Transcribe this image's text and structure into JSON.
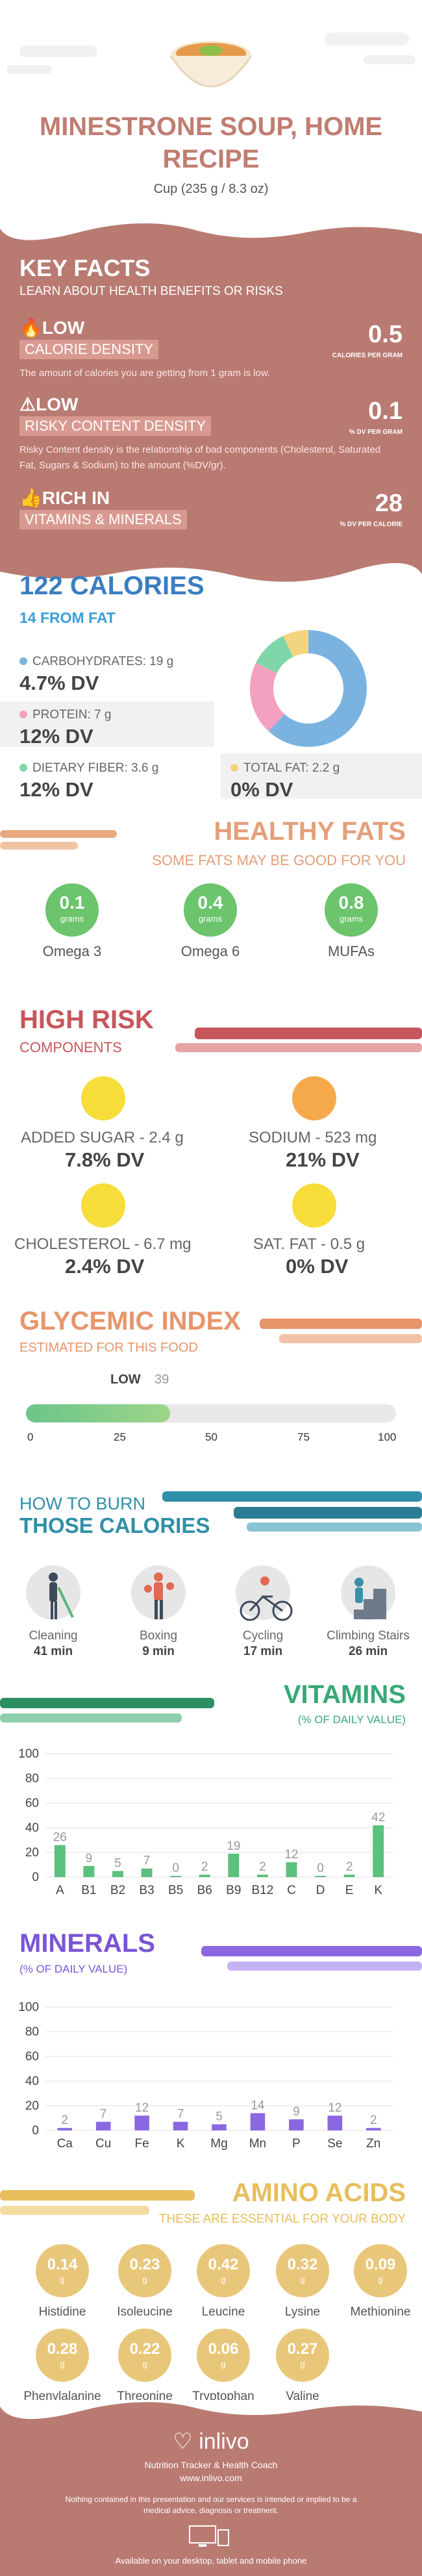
{
  "header": {
    "title_line1": "MINESTRONE SOUP, HOME",
    "title_line2": "RECIPE",
    "serving": "Cup (235 g / 8.3 oz)"
  },
  "key_facts": {
    "title": "KEY FACTS",
    "subtitle": "LEARN ABOUT HEALTH BENEFITS OR RISKS",
    "items": [
      {
        "label1": "LOW",
        "label2": "CALORIE DENSITY",
        "desc": "The amount of calories you are getting from 1 gram is low.",
        "value": "0.5",
        "unit": "CALORIES PER GRAM"
      },
      {
        "label1": "LOW",
        "label2": "RISKY CONTENT DENSITY",
        "desc": "Risky Content density is the relationship of bad components (Cholesterol, Saturated Fat, Sugars & Sodium) to the amount (%DV/gr).",
        "value": "0.1",
        "unit": "% DV PER GRAM"
      },
      {
        "label1": "RICH IN",
        "label2": "VITAMINS & MINERALS",
        "desc": "",
        "value": "28",
        "unit": "% DV PER CALORIE"
      }
    ]
  },
  "calories": {
    "title": "122 CALORIES",
    "subtitle": "14 FROM FAT",
    "nutrients": [
      {
        "label": "CARBOHYDRATES: 19 g",
        "dv": "4.7% DV",
        "color": "#7ab3e0"
      },
      {
        "label": "PROTEIN: 7 g",
        "dv": "12% DV",
        "color": "#f4a0c0"
      },
      {
        "label": "DIETARY FIBER: 3.6 g",
        "dv": "12% DV",
        "color": "#7fd6a8"
      },
      {
        "label": "TOTAL FAT: 2.2 g",
        "dv": "0% DV",
        "color": "#f5d47f"
      }
    ]
  },
  "healthy_fats": {
    "title": "HEALTHY FATS",
    "subtitle": "SOME FATS MAY BE GOOD FOR YOU",
    "items": [
      {
        "value": "0.1",
        "unit": "grams",
        "name": "Omega 3"
      },
      {
        "value": "0.4",
        "unit": "grams",
        "name": "Omega 6"
      },
      {
        "value": "0.8",
        "unit": "grams",
        "name": "MUFAs"
      }
    ]
  },
  "high_risk": {
    "title": "HIGH RISK",
    "subtitle": "COMPONENTS",
    "items": [
      {
        "name": "ADDED SUGAR - 2.4 g",
        "dv": "7.8% DV"
      },
      {
        "name": "SODIUM - 523 mg",
        "dv": "21% DV"
      },
      {
        "name": "CHOLESTEROL - 6.7 mg",
        "dv": "2.4% DV"
      },
      {
        "name": "SAT. FAT - 0.5 g",
        "dv": "0% DV"
      }
    ]
  },
  "glycemic": {
    "title": "GLYCEMIC INDEX",
    "subtitle": "ESTIMATED FOR THIS FOOD",
    "level": "LOW",
    "value": "39",
    "ticks": [
      "0",
      "25",
      "50",
      "75",
      "100"
    ]
  },
  "burn": {
    "title1": "HOW TO BURN",
    "title2": "THOSE CALORIES",
    "items": [
      {
        "name": "Cleaning",
        "min": "41 min"
      },
      {
        "name": "Boxing",
        "min": "9 min"
      },
      {
        "name": "Cycling",
        "min": "17 min"
      },
      {
        "name": "Climbing Stairs",
        "min": "26 min"
      }
    ]
  },
  "vitamins": {
    "title": "VITAMINS",
    "subtitle": "(% OF DAILY VALUE)",
    "chart_data": {
      "type": "bar",
      "categories": [
        "A",
        "B1",
        "B2",
        "B3",
        "B5",
        "B6",
        "B9",
        "B12",
        "C",
        "D",
        "E",
        "K"
      ],
      "values": [
        26,
        9,
        5,
        7,
        0,
        2,
        19,
        2,
        12,
        0,
        2,
        42
      ],
      "ylim": [
        0,
        100
      ],
      "yticks": [
        "0",
        "20",
        "40",
        "60",
        "80",
        "100"
      ]
    }
  },
  "minerals": {
    "title": "MINERALS",
    "subtitle": "(% OF DAILY VALUE)",
    "chart_data": {
      "type": "bar",
      "categories": [
        "Ca",
        "Cu",
        "Fe",
        "K",
        "Mg",
        "Mn",
        "P",
        "Se",
        "Zn"
      ],
      "values": [
        2,
        7,
        12,
        7,
        5,
        14,
        9,
        12,
        2
      ],
      "ylim": [
        0,
        100
      ],
      "yticks": [
        "0",
        "20",
        "40",
        "60",
        "80",
        "100"
      ]
    }
  },
  "amino": {
    "title": "AMINO ACIDS",
    "subtitle": "THESE ARE ESSENTIAL FOR YOUR BODY",
    "unit": "g",
    "items": [
      {
        "value": "0.14",
        "name": "Histidine"
      },
      {
        "value": "0.23",
        "name": "Isoleucine"
      },
      {
        "value": "0.42",
        "name": "Leucine"
      },
      {
        "value": "0.32",
        "name": "Lysine"
      },
      {
        "value": "0.09",
        "name": "Methionine"
      },
      {
        "value": "0.28",
        "name": "Phenylalanine"
      },
      {
        "value": "0.22",
        "name": "Threonine"
      },
      {
        "value": "0.06",
        "name": "Tryptophan"
      },
      {
        "value": "0.27",
        "name": "Valine"
      }
    ]
  },
  "footer": {
    "brand": "inlivo",
    "tagline": "Nutrition Tracker & Health Coach",
    "url": "www.inlivo.com",
    "disclaimer": "Nothing contained in this presentation and our services is intended or implied to be a medical advice, diagnosis or treatment.",
    "available": "Available on your desktop, tablet and mobile phone"
  }
}
